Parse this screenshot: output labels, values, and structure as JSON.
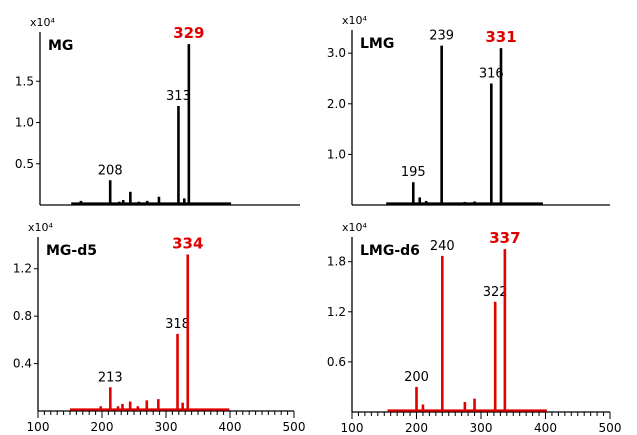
{
  "chart_data": [
    {
      "type": "line",
      "title": "MG",
      "multiplier": "x10⁴",
      "color": "#000000",
      "xlim": [
        100,
        500
      ],
      "ylim": [
        0,
        2.0
      ],
      "yticks": [
        "0.5",
        "1.0",
        "1.5"
      ],
      "xticks": [],
      "peaks": [
        {
          "x": 163,
          "y": 0.05
        },
        {
          "x": 195,
          "y": 0.03
        },
        {
          "x": 208,
          "y": 0.3,
          "label": "208"
        },
        {
          "x": 222,
          "y": 0.04
        },
        {
          "x": 228,
          "y": 0.06
        },
        {
          "x": 239,
          "y": 0.16
        },
        {
          "x": 252,
          "y": 0.04
        },
        {
          "x": 265,
          "y": 0.05
        },
        {
          "x": 283,
          "y": 0.1
        },
        {
          "x": 313,
          "y": 1.2,
          "label": "313"
        },
        {
          "x": 322,
          "y": 0.08
        },
        {
          "x": 329,
          "y": 1.95,
          "label": "329",
          "highlight": true
        }
      ]
    },
    {
      "type": "line",
      "title": "LMG",
      "multiplier": "x10⁴",
      "color": "#000000",
      "xlim": [
        100,
        500
      ],
      "ylim": [
        0,
        3.3
      ],
      "yticks": [
        "1.0",
        "2.0",
        "3.0"
      ],
      "xticks": [],
      "peaks": [
        {
          "x": 168,
          "y": 0.04
        },
        {
          "x": 185,
          "y": 0.05
        },
        {
          "x": 195,
          "y": 0.45,
          "label": "195"
        },
        {
          "x": 205,
          "y": 0.15
        },
        {
          "x": 215,
          "y": 0.08
        },
        {
          "x": 239,
          "y": 3.15,
          "label": "239"
        },
        {
          "x": 275,
          "y": 0.06
        },
        {
          "x": 290,
          "y": 0.07
        },
        {
          "x": 316,
          "y": 2.4,
          "label": "316"
        },
        {
          "x": 331,
          "y": 3.1,
          "label": "331",
          "highlight": true
        }
      ]
    },
    {
      "type": "line",
      "title": "MG-d5",
      "multiplier": "x10⁴",
      "color": "#e00000",
      "xlim": [
        100,
        500
      ],
      "ylim": [
        0,
        1.4
      ],
      "yticks": [
        "0.4",
        "0.8",
        "1.2"
      ],
      "xticks": [
        "100",
        "200",
        "300",
        "400",
        "500"
      ],
      "peaks": [
        {
          "x": 165,
          "y": 0.02
        },
        {
          "x": 198,
          "y": 0.04
        },
        {
          "x": 213,
          "y": 0.2,
          "label": "213"
        },
        {
          "x": 225,
          "y": 0.04
        },
        {
          "x": 232,
          "y": 0.06
        },
        {
          "x": 244,
          "y": 0.08
        },
        {
          "x": 256,
          "y": 0.04
        },
        {
          "x": 270,
          "y": 0.09
        },
        {
          "x": 288,
          "y": 0.1
        },
        {
          "x": 318,
          "y": 0.65,
          "label": "318"
        },
        {
          "x": 326,
          "y": 0.07
        },
        {
          "x": 334,
          "y": 1.32,
          "label": "334",
          "highlight": true
        }
      ]
    },
    {
      "type": "line",
      "title": "LMG-d6",
      "multiplier": "x10⁴",
      "color": "#e00000",
      "xlim": [
        100,
        500
      ],
      "ylim": [
        0,
        2.0
      ],
      "yticks": [
        "0.6",
        "1.2",
        "1.8"
      ],
      "xticks": [
        "100",
        "200",
        "300",
        "400",
        "500"
      ],
      "peaks": [
        {
          "x": 170,
          "y": 0.02
        },
        {
          "x": 185,
          "y": 0.03
        },
        {
          "x": 200,
          "y": 0.3,
          "label": "200"
        },
        {
          "x": 210,
          "y": 0.09
        },
        {
          "x": 240,
          "y": 1.87,
          "label": "240"
        },
        {
          "x": 275,
          "y": 0.12
        },
        {
          "x": 290,
          "y": 0.16
        },
        {
          "x": 322,
          "y": 1.32,
          "label": "322"
        },
        {
          "x": 337,
          "y": 1.95,
          "label": "337",
          "highlight": true
        }
      ]
    }
  ]
}
